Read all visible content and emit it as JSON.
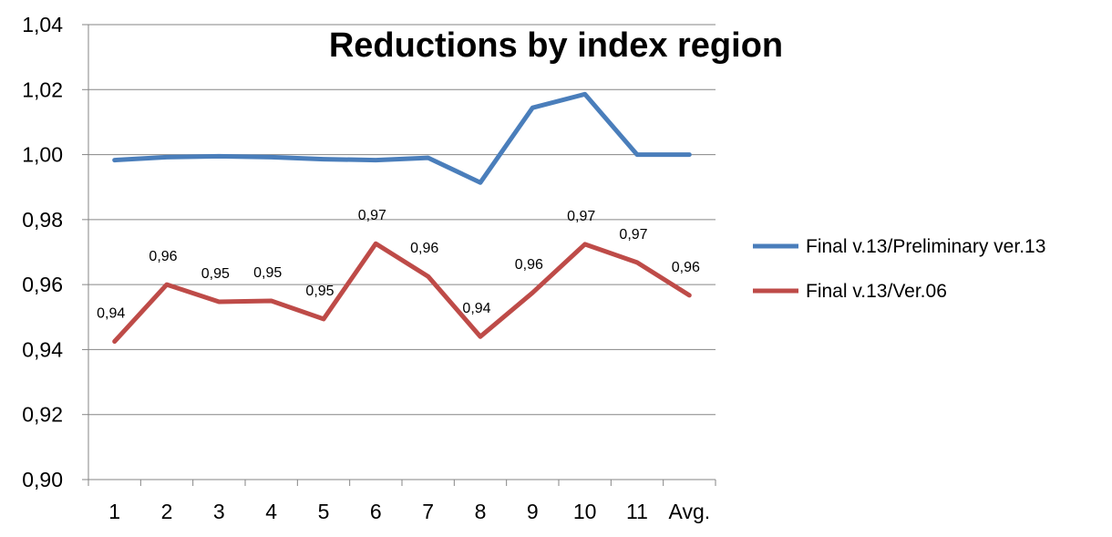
{
  "chart_data": {
    "type": "line",
    "title": "Reductions by index region",
    "xlabel": "",
    "ylabel": "",
    "categories": [
      "1",
      "2",
      "3",
      "4",
      "5",
      "6",
      "7",
      "8",
      "9",
      "10",
      "11",
      "Avg."
    ],
    "ylim": [
      0.9,
      1.04
    ],
    "yticks": [
      "0,90",
      "0,92",
      "0,94",
      "0,96",
      "0,98",
      "1,00",
      "1,02",
      "1,04"
    ],
    "grid": true,
    "legend_position": "right",
    "series": [
      {
        "name": "Final v.13/Preliminary ver.13",
        "color": "#4a7ebb",
        "values": [
          0.9983,
          0.9992,
          0.9995,
          0.9992,
          0.9986,
          0.9983,
          0.999,
          0.9914,
          1.0144,
          1.0186,
          1.0,
          1.0
        ],
        "data_labels": []
      },
      {
        "name": "Final v.13/Ver.06",
        "color": "#be4b48",
        "values": [
          0.9425,
          0.96,
          0.9547,
          0.955,
          0.9494,
          0.9726,
          0.9625,
          0.944,
          0.9575,
          0.9724,
          0.9668,
          0.9567
        ],
        "data_labels": [
          "0,94",
          "0,96",
          "0,95",
          "0,95",
          "0,95",
          "0,97",
          "0,96",
          "0,94",
          "0,96",
          "0,97",
          "0,97",
          "0,96"
        ]
      }
    ]
  }
}
